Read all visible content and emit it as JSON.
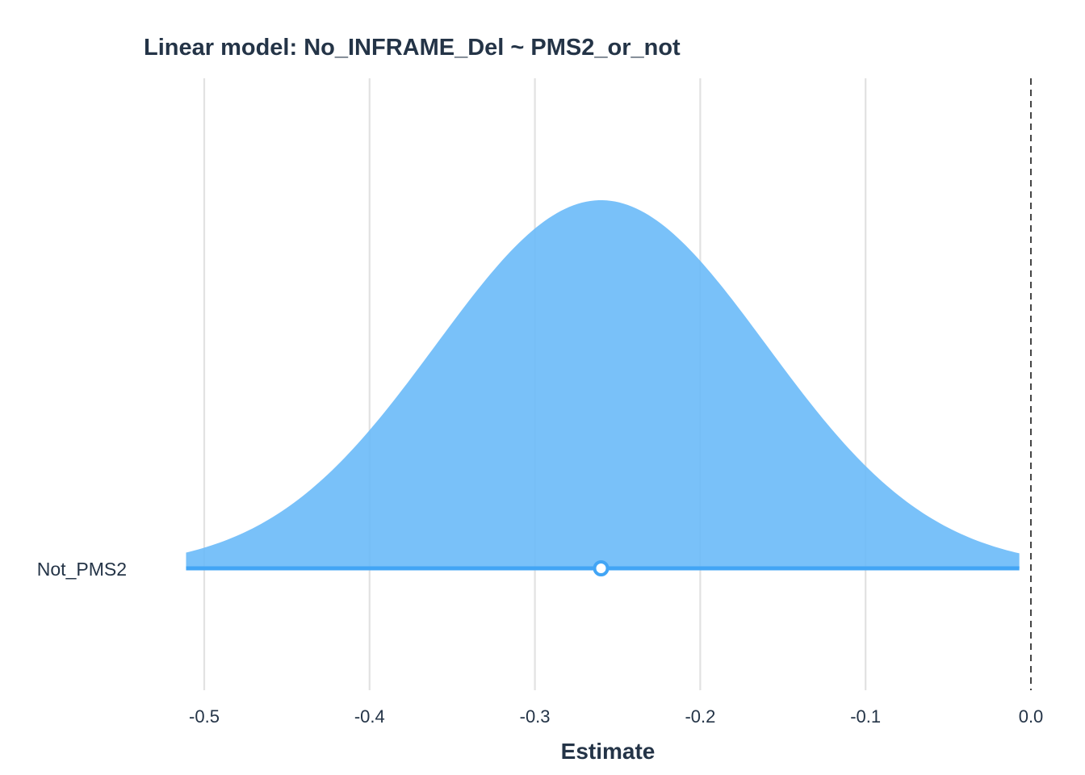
{
  "chart_data": {
    "type": "area",
    "title": "Linear model: No_INFRAME_Del ~ PMS2_or_not",
    "xlabel": "Estimate",
    "ylabel": "",
    "xlim": [
      -0.511,
      0.007
    ],
    "x_ticks": [
      -0.5,
      -0.4,
      -0.3,
      -0.2,
      -0.1,
      0.0
    ],
    "x_tick_labels": [
      "-0.5",
      "-0.4",
      "-0.3",
      "-0.2",
      "-0.1",
      "0.0"
    ],
    "grid": true,
    "reference_line": {
      "x": 0.0,
      "style": "dashed"
    },
    "series": [
      {
        "name": "Not_PMS2",
        "estimate": -0.26,
        "interval": [
          -0.511,
          -0.007
        ],
        "density_sd": 0.1,
        "color": "#42a5f5",
        "fill_color": "#66b8f8"
      }
    ]
  },
  "colors": {
    "grid": "#e2e2e2",
    "text": "#243447",
    "ref_line": "#444444",
    "background": "#ffffff"
  }
}
